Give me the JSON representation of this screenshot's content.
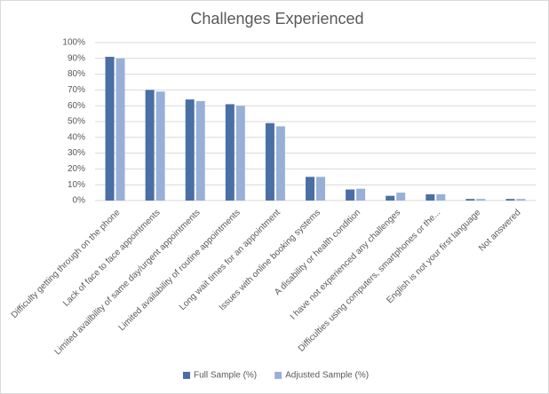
{
  "chart_data": {
    "type": "bar",
    "title": "Challenges Experienced",
    "categories": [
      "Difficulty getting through on the phone",
      "Lack of face to face appointments",
      "Limited availbility of same day/urgent appointments",
      "Limited availability of routine appointments",
      "Long wait times for an appointment",
      "Issues with online booking systems",
      "A disability or health condition",
      "I have not experienced any challenges",
      "Difficulties using computers, smartphones or the...",
      "English is not your first language",
      "Not answered"
    ],
    "series": [
      {
        "name": "Full Sample (%)",
        "color": "#4a6fa5",
        "values": [
          91,
          70,
          64,
          61,
          49,
          15,
          7,
          3,
          4,
          1,
          1
        ]
      },
      {
        "name": "Adjusted Sample (%)",
        "color": "#98b0d8",
        "values": [
          90,
          69,
          63,
          60,
          47,
          15,
          7.5,
          5,
          4,
          1,
          1
        ]
      }
    ],
    "ylim": [
      0,
      100
    ],
    "yticks": [
      {
        "value": 0,
        "label": "0%"
      },
      {
        "value": 10,
        "label": "10%"
      },
      {
        "value": 20,
        "label": "20%"
      },
      {
        "value": 30,
        "label": "30%"
      },
      {
        "value": 40,
        "label": "40%"
      },
      {
        "value": 50,
        "label": "50%"
      },
      {
        "value": 60,
        "label": "60%"
      },
      {
        "value": 70,
        "label": "70%"
      },
      {
        "value": 80,
        "label": "80%"
      },
      {
        "value": 90,
        "label": "90%"
      },
      {
        "value": 100,
        "label": "100%"
      }
    ],
    "grid": true,
    "legend": "bottom"
  }
}
